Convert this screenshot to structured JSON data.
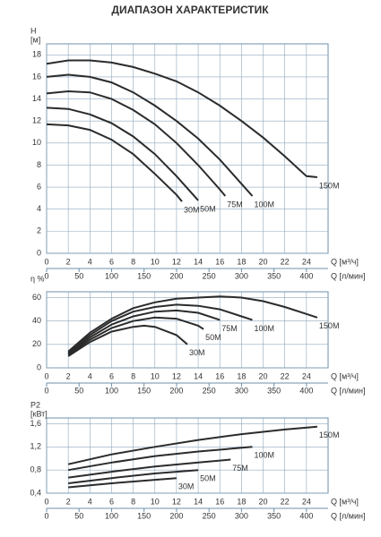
{
  "chart_data": [
    {
      "type": "line",
      "title": "ДИАПАЗОН ХАРАКТЕРИСТИК",
      "y_label": [
        "H",
        "[м]"
      ],
      "x_label": "Q [м³/ч]",
      "x2_label": "Q [л/мин]",
      "xlim": [
        0,
        26
      ],
      "xticks": [
        0,
        2,
        4,
        6,
        8,
        10,
        12,
        14,
        16,
        18,
        20,
        22,
        24
      ],
      "x2lim": [
        0,
        433.3
      ],
      "x2ticks": [
        0,
        50,
        100,
        150,
        200,
        250,
        300,
        350,
        400
      ],
      "ylim": [
        0,
        19
      ],
      "yticks": [
        0,
        2,
        4,
        6,
        8,
        10,
        12,
        14,
        16,
        18
      ],
      "grid": true,
      "series": [
        {
          "name": "30M",
          "color": "#2b2b2b",
          "x": [
            0,
            2,
            4,
            6,
            8,
            10,
            12,
            12.5
          ],
          "values": [
            11.7,
            11.6,
            11.2,
            10.3,
            9,
            7.2,
            5.3,
            4.7
          ]
        },
        {
          "name": "50M",
          "color": "#2b2b2b",
          "x": [
            0,
            2,
            4,
            6,
            8,
            10,
            12,
            14
          ],
          "values": [
            13.2,
            13.1,
            12.6,
            11.8,
            10.6,
            9,
            7,
            4.8
          ]
        },
        {
          "name": "75M",
          "color": "#2b2b2b",
          "x": [
            0,
            2,
            4,
            6,
            8,
            10,
            12,
            14,
            16,
            16.5
          ],
          "values": [
            14.5,
            14.7,
            14.6,
            14,
            13,
            11.7,
            10,
            8,
            5.8,
            5.2
          ]
        },
        {
          "name": "100M",
          "color": "#2b2b2b",
          "x": [
            0,
            2,
            4,
            6,
            8,
            10,
            12,
            14,
            16,
            18,
            19
          ],
          "values": [
            16,
            16.2,
            16,
            15.5,
            14.6,
            13.4,
            12,
            10.4,
            8.5,
            6.3,
            5.2
          ]
        },
        {
          "name": "150M",
          "color": "#2b2b2b",
          "x": [
            0,
            2,
            4,
            6,
            8,
            10,
            12,
            14,
            16,
            18,
            20,
            22,
            24,
            25
          ],
          "values": [
            17.2,
            17.5,
            17.5,
            17.3,
            16.9,
            16.3,
            15.6,
            14.6,
            13.4,
            12,
            10.5,
            8.8,
            7,
            6.9
          ]
        }
      ]
    },
    {
      "type": "line",
      "y_label": [
        "η %"
      ],
      "x_label": "Q [м³/ч]",
      "x2_label": "Q [л/мин]",
      "xlim": [
        0,
        26
      ],
      "xticks": [
        0,
        2,
        4,
        6,
        8,
        10,
        12,
        14,
        16,
        18,
        20,
        22,
        24
      ],
      "x2lim": [
        0,
        433.3
      ],
      "x2ticks": [
        0,
        50,
        100,
        150,
        200,
        250,
        300,
        350,
        400
      ],
      "ylim": [
        0,
        65
      ],
      "yticks": [
        0,
        20,
        40,
        60
      ],
      "grid": true,
      "series": [
        {
          "name": "30M",
          "color": "#2b2b2b",
          "x": [
            2,
            4,
            6,
            8,
            9,
            10,
            12,
            13
          ],
          "values": [
            10,
            22,
            31,
            35,
            36,
            35,
            28,
            20
          ]
        },
        {
          "name": "50M",
          "color": "#2b2b2b",
          "x": [
            2,
            4,
            6,
            8,
            10,
            12,
            14,
            14.5
          ],
          "values": [
            11,
            24,
            34,
            40,
            43,
            42,
            36,
            33
          ]
        },
        {
          "name": "75M",
          "color": "#2b2b2b",
          "x": [
            2,
            4,
            6,
            8,
            10,
            12,
            14,
            16
          ],
          "values": [
            12,
            26,
            37,
            44,
            48,
            49,
            47,
            41
          ]
        },
        {
          "name": "100M",
          "color": "#2b2b2b",
          "x": [
            2,
            4,
            6,
            8,
            10,
            12,
            14,
            16,
            18,
            19
          ],
          "values": [
            13,
            28,
            40,
            48,
            52,
            54,
            53,
            50,
            44,
            41
          ]
        },
        {
          "name": "150M",
          "color": "#2b2b2b",
          "x": [
            2,
            4,
            6,
            8,
            10,
            12,
            14,
            16,
            18,
            20,
            22,
            24,
            25
          ],
          "values": [
            14,
            30,
            42,
            51,
            56,
            59,
            60,
            61,
            60,
            57,
            52,
            46,
            43
          ]
        }
      ]
    },
    {
      "type": "line",
      "y_label": [
        "P2",
        "[кВт]"
      ],
      "x_label": "Q [м³/ч]",
      "x2_label": "Q [л/мин]",
      "xlim": [
        0,
        26
      ],
      "xticks": [
        0,
        2,
        4,
        6,
        8,
        10,
        12,
        14,
        16,
        18,
        20,
        22,
        24
      ],
      "x2lim": [
        0,
        433.3
      ],
      "x2ticks": [
        0,
        50,
        100,
        150,
        200,
        250,
        300,
        350,
        400
      ],
      "ylim": [
        0.4,
        1.7
      ],
      "yticks": [
        {
          "value": 0.4,
          "label": "0,4"
        },
        {
          "value": 0.8,
          "label": "0,8"
        },
        {
          "value": 1.2,
          "label": "1,2"
        },
        {
          "value": 1.6,
          "label": "1,6"
        }
      ],
      "grid": true,
      "series": [
        {
          "name": "30M",
          "color": "#2b2b2b",
          "x": [
            2,
            6,
            10,
            12
          ],
          "values": [
            0.5,
            0.57,
            0.63,
            0.66
          ]
        },
        {
          "name": "50M",
          "color": "#2b2b2b",
          "x": [
            2,
            6,
            10,
            14
          ],
          "values": [
            0.57,
            0.66,
            0.74,
            0.8
          ]
        },
        {
          "name": "75M",
          "color": "#2b2b2b",
          "x": [
            2,
            6,
            10,
            14,
            17
          ],
          "values": [
            0.67,
            0.77,
            0.86,
            0.93,
            0.98
          ]
        },
        {
          "name": "100M",
          "color": "#2b2b2b",
          "x": [
            2,
            6,
            10,
            14,
            19
          ],
          "values": [
            0.8,
            0.93,
            1.04,
            1.12,
            1.2
          ]
        },
        {
          "name": "150M",
          "color": "#2b2b2b",
          "x": [
            2,
            6,
            10,
            14,
            18,
            22,
            25
          ],
          "values": [
            0.9,
            1.07,
            1.2,
            1.32,
            1.42,
            1.5,
            1.55
          ]
        }
      ]
    }
  ]
}
